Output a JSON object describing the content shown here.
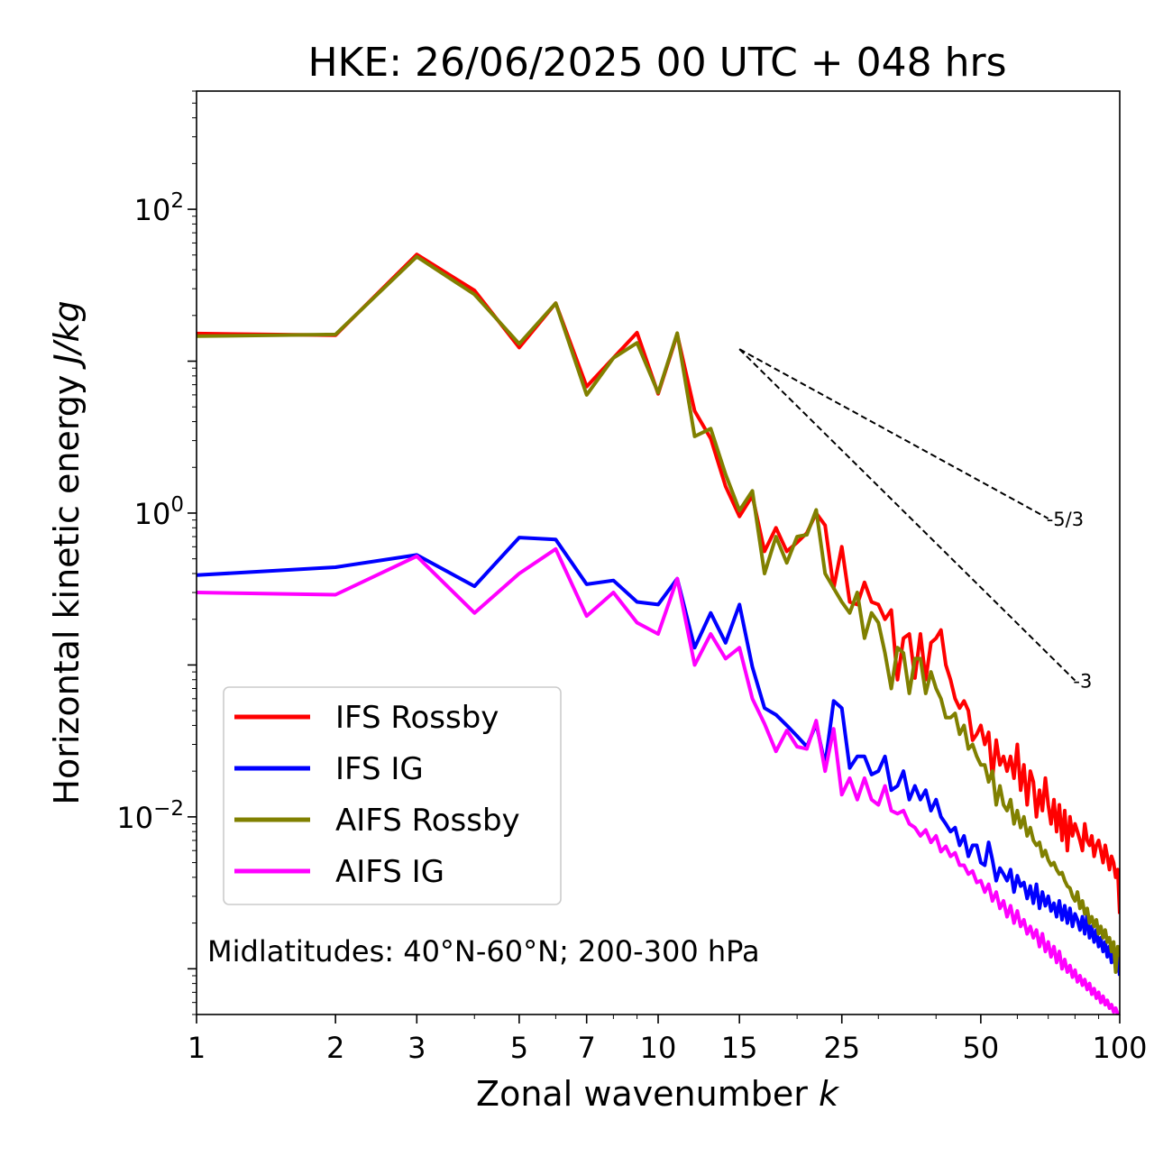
{
  "chart_data": {
    "type": "line",
    "title": "HKE: 26/06/2025 00 UTC + 048 hrs",
    "xlabel": "Zonal wavenumber ",
    "xlabel_italic": "k",
    "ylabel": "Horizontal kinetic energy ",
    "ylabel_italic": "J/kg",
    "xscale": "log",
    "yscale": "log",
    "xlim": [
      1,
      100
    ],
    "ylim": [
      0.0005,
      600
    ],
    "x_ticks": [
      {
        "value": 1,
        "label": "1"
      },
      {
        "value": 2,
        "label": "2"
      },
      {
        "value": 3,
        "label": "3"
      },
      {
        "value": 5,
        "label": "5"
      },
      {
        "value": 7,
        "label": "7"
      },
      {
        "value": 10,
        "label": "10"
      },
      {
        "value": 15,
        "label": "15"
      },
      {
        "value": 25,
        "label": "25"
      },
      {
        "value": 50,
        "label": "50"
      },
      {
        "value": 100,
        "label": "100"
      }
    ],
    "y_ticks": [
      {
        "value": 100,
        "base": "10",
        "exp": "2"
      },
      {
        "value": 1,
        "base": "10",
        "exp": "0"
      },
      {
        "value": 0.01,
        "base": "10",
        "exp": "−2"
      }
    ],
    "grid": false,
    "legend_position": "lower-left",
    "annotation": "Midlatitudes: 40°N-60°N; 200-300 hPa",
    "reference_lines": [
      {
        "label": "-5/3",
        "slope": -1.6667,
        "x": [
          15,
          70
        ],
        "y_start": 12
      },
      {
        "label": "-3",
        "slope": -3,
        "x": [
          15,
          80
        ],
        "y_start": 12
      }
    ],
    "series": [
      {
        "name": "IFS Rossby",
        "color": "#ff0000",
        "x": [
          1,
          2,
          3,
          4,
          5,
          6,
          7,
          8,
          9,
          10,
          11,
          12,
          13,
          14,
          15,
          16,
          17,
          18,
          19,
          20,
          21,
          22,
          23,
          24,
          25,
          26,
          27,
          28,
          29,
          30,
          31,
          32,
          33,
          34,
          35,
          36,
          37,
          38,
          39,
          40,
          41,
          42,
          43,
          44,
          45,
          46,
          47,
          48,
          49,
          50,
          51,
          52,
          53,
          54,
          55,
          56,
          57,
          58,
          59,
          60,
          61,
          62,
          63,
          64,
          65,
          66,
          67,
          68,
          69,
          70,
          71,
          72,
          73,
          74,
          75,
          76,
          77,
          78,
          79,
          80,
          81,
          82,
          83,
          84,
          85,
          86,
          87,
          88,
          89,
          90,
          91,
          92,
          93,
          94,
          95,
          96,
          97,
          98,
          99,
          100
        ],
        "y": [
          15.2,
          14.8,
          50.4,
          29.2,
          12.3,
          24.1,
          6.8,
          10.5,
          15.4,
          6.1,
          15.0,
          4.7,
          3.1,
          1.5,
          0.95,
          1.3,
          0.56,
          0.8,
          0.56,
          0.64,
          0.74,
          1.0,
          0.83,
          0.32,
          0.6,
          0.26,
          0.25,
          0.35,
          0.26,
          0.25,
          0.2,
          0.23,
          0.08,
          0.15,
          0.16,
          0.082,
          0.16,
          0.08,
          0.14,
          0.15,
          0.17,
          0.1,
          0.08,
          0.06,
          0.052,
          0.058,
          0.05,
          0.032,
          0.035,
          0.04,
          0.03,
          0.036,
          0.018,
          0.032,
          0.022,
          0.025,
          0.02,
          0.025,
          0.018,
          0.03,
          0.015,
          0.022,
          0.012,
          0.02,
          0.017,
          0.01,
          0.015,
          0.011,
          0.018,
          0.012,
          0.009,
          0.013,
          0.008,
          0.012,
          0.007,
          0.011,
          0.006,
          0.01,
          0.0075,
          0.009,
          0.008,
          0.007,
          0.006,
          0.009,
          0.007,
          0.0065,
          0.0075,
          0.0055,
          0.0065,
          0.007,
          0.006,
          0.005,
          0.0065,
          0.0055,
          0.0045,
          0.0055,
          0.005,
          0.004,
          0.0045,
          0.0023
        ]
      },
      {
        "name": "IFS IG",
        "color": "#0000ff",
        "x": [
          1,
          2,
          3,
          4,
          5,
          6,
          7,
          8,
          9,
          10,
          11,
          12,
          13,
          14,
          15,
          16,
          17,
          18,
          19,
          20,
          21,
          22,
          23,
          24,
          25,
          26,
          27,
          28,
          29,
          30,
          31,
          32,
          33,
          34,
          35,
          36,
          37,
          38,
          39,
          40,
          41,
          42,
          43,
          44,
          45,
          46,
          47,
          48,
          49,
          50,
          51,
          52,
          53,
          54,
          55,
          56,
          57,
          58,
          59,
          60,
          61,
          62,
          63,
          64,
          65,
          66,
          67,
          68,
          69,
          70,
          71,
          72,
          73,
          74,
          75,
          76,
          77,
          78,
          79,
          80,
          81,
          82,
          83,
          84,
          85,
          86,
          87,
          88,
          89,
          90,
          91,
          92,
          93,
          94,
          95,
          96,
          97,
          98,
          99,
          100
        ],
        "y": [
          0.39,
          0.44,
          0.53,
          0.33,
          0.69,
          0.67,
          0.34,
          0.36,
          0.26,
          0.25,
          0.37,
          0.13,
          0.22,
          0.14,
          0.25,
          0.097,
          0.052,
          0.047,
          0.04,
          0.034,
          0.029,
          0.041,
          0.022,
          0.058,
          0.052,
          0.021,
          0.025,
          0.025,
          0.019,
          0.02,
          0.025,
          0.015,
          0.016,
          0.02,
          0.013,
          0.016,
          0.013,
          0.015,
          0.011,
          0.013,
          0.01,
          0.009,
          0.008,
          0.0085,
          0.0065,
          0.0075,
          0.0055,
          0.0065,
          0.0065,
          0.005,
          0.0048,
          0.0068,
          0.0052,
          0.0038,
          0.0046,
          0.0042,
          0.0038,
          0.0045,
          0.0032,
          0.0041,
          0.0035,
          0.0037,
          0.0029,
          0.0035,
          0.0027,
          0.0036,
          0.0025,
          0.0032,
          0.0026,
          0.003,
          0.0024,
          0.0027,
          0.0022,
          0.0028,
          0.0021,
          0.0026,
          0.002,
          0.0025,
          0.0019,
          0.0023,
          0.0021,
          0.0018,
          0.0022,
          0.0017,
          0.0023,
          0.0016,
          0.0019,
          0.0015,
          0.0018,
          0.0014,
          0.0016,
          0.0013,
          0.0015,
          0.0012,
          0.0014,
          0.0011,
          0.0013,
          0.001,
          0.0012,
          0.0009
        ]
      },
      {
        "name": "AIFS Rossby",
        "color": "#808000",
        "x": [
          1,
          2,
          3,
          4,
          5,
          6,
          7,
          8,
          9,
          10,
          11,
          12,
          13,
          14,
          15,
          16,
          17,
          18,
          19,
          20,
          21,
          22,
          23,
          24,
          25,
          26,
          27,
          28,
          29,
          30,
          31,
          32,
          33,
          34,
          35,
          36,
          37,
          38,
          39,
          40,
          41,
          42,
          43,
          44,
          45,
          46,
          47,
          48,
          49,
          50,
          51,
          52,
          53,
          54,
          55,
          56,
          57,
          58,
          59,
          60,
          61,
          62,
          63,
          64,
          65,
          66,
          67,
          68,
          69,
          70,
          71,
          72,
          73,
          74,
          75,
          76,
          77,
          78,
          79,
          80,
          81,
          82,
          83,
          84,
          85,
          86,
          87,
          88,
          89,
          90,
          91,
          92,
          93,
          94,
          95,
          96,
          97,
          98,
          99,
          100
        ],
        "y": [
          14.6,
          15.0,
          48.8,
          27.5,
          13.0,
          24.1,
          6.0,
          10.5,
          13.2,
          6.2,
          15.3,
          3.2,
          3.6,
          1.8,
          1.04,
          1.4,
          0.4,
          0.7,
          0.47,
          0.7,
          0.72,
          1.05,
          0.4,
          0.32,
          0.26,
          0.22,
          0.3,
          0.15,
          0.22,
          0.19,
          0.12,
          0.07,
          0.13,
          0.12,
          0.065,
          0.11,
          0.11,
          0.065,
          0.09,
          0.07,
          0.06,
          0.045,
          0.045,
          0.048,
          0.035,
          0.04,
          0.028,
          0.03,
          0.025,
          0.022,
          0.022,
          0.017,
          0.02,
          0.012,
          0.016,
          0.012,
          0.011,
          0.013,
          0.009,
          0.011,
          0.0085,
          0.01,
          0.0075,
          0.0085,
          0.007,
          0.0065,
          0.0068,
          0.0055,
          0.006,
          0.0052,
          0.0048,
          0.005,
          0.0045,
          0.0042,
          0.0043,
          0.0038,
          0.0035,
          0.0034,
          0.003,
          0.0028,
          0.0032,
          0.0025,
          0.0028,
          0.0023,
          0.0025,
          0.002,
          0.0022,
          0.0019,
          0.0021,
          0.0017,
          0.0019,
          0.0016,
          0.0018,
          0.0015,
          0.0016,
          0.0013,
          0.0015,
          0.00095,
          0.0014,
          0.0012
        ]
      },
      {
        "name": "AIFS IG",
        "color": "#ff00ff",
        "x": [
          1,
          2,
          3,
          4,
          5,
          6,
          7,
          8,
          9,
          10,
          11,
          12,
          13,
          14,
          15,
          16,
          17,
          18,
          19,
          20,
          21,
          22,
          23,
          24,
          25,
          26,
          27,
          28,
          29,
          30,
          31,
          32,
          33,
          34,
          35,
          36,
          37,
          38,
          39,
          40,
          41,
          42,
          43,
          44,
          45,
          46,
          47,
          48,
          49,
          50,
          51,
          52,
          53,
          54,
          55,
          56,
          57,
          58,
          59,
          60,
          61,
          62,
          63,
          64,
          65,
          66,
          67,
          68,
          69,
          70,
          71,
          72,
          73,
          74,
          75,
          76,
          77,
          78,
          79,
          80,
          81,
          82,
          83,
          84,
          85,
          86,
          87,
          88,
          89,
          90,
          91,
          92,
          93,
          94,
          95,
          96,
          97,
          98,
          99,
          100
        ],
        "y": [
          0.3,
          0.29,
          0.52,
          0.22,
          0.4,
          0.58,
          0.21,
          0.3,
          0.19,
          0.16,
          0.37,
          0.1,
          0.16,
          0.11,
          0.13,
          0.06,
          0.041,
          0.027,
          0.037,
          0.029,
          0.028,
          0.043,
          0.02,
          0.038,
          0.014,
          0.018,
          0.013,
          0.018,
          0.013,
          0.012,
          0.016,
          0.011,
          0.0105,
          0.011,
          0.009,
          0.0085,
          0.0075,
          0.0082,
          0.0068,
          0.0075,
          0.0059,
          0.0064,
          0.0055,
          0.0058,
          0.0048,
          0.0048,
          0.0042,
          0.0044,
          0.0037,
          0.0038,
          0.0032,
          0.0036,
          0.0028,
          0.0032,
          0.0025,
          0.0028,
          0.0022,
          0.0026,
          0.002,
          0.0024,
          0.0019,
          0.0021,
          0.0017,
          0.0019,
          0.0016,
          0.0018,
          0.0014,
          0.0017,
          0.0013,
          0.0015,
          0.0012,
          0.0014,
          0.0011,
          0.0013,
          0.001,
          0.00115,
          0.00095,
          0.00105,
          0.00088,
          0.00098,
          0.00082,
          0.0009,
          0.00078,
          0.00085,
          0.00073,
          0.0008,
          0.00068,
          0.00074,
          0.00064,
          0.0007,
          0.0006,
          0.00066,
          0.00058,
          0.00062,
          0.00055,
          0.00058,
          0.00052,
          0.00055,
          0.0005,
          0.0005
        ]
      }
    ]
  }
}
